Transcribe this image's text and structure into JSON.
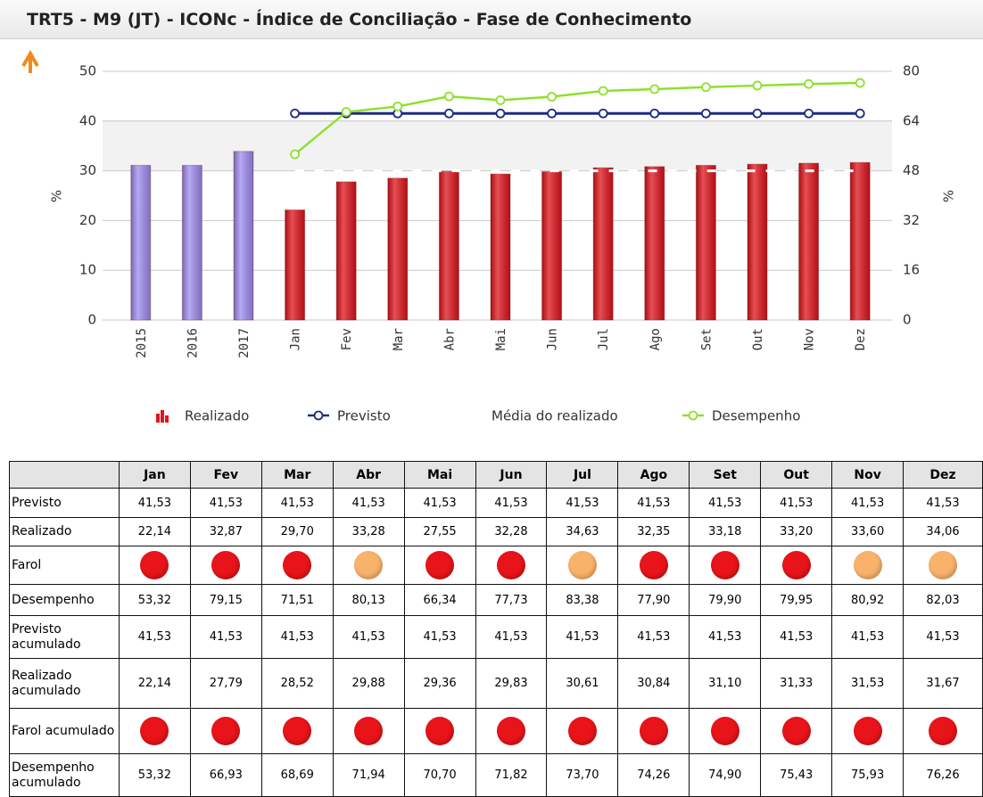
{
  "header": {
    "title": "TRT5 - M9 (JT) - ICONc - Índice de Conciliação - Fase de Conhecimento"
  },
  "chart_data": {
    "type": "bar",
    "categories": [
      "2015",
      "2016",
      "2017",
      "Jan",
      "Fev",
      "Mar",
      "Abr",
      "Mai",
      "Jun",
      "Jul",
      "Ago",
      "Set",
      "Out",
      "Nov",
      "Dez"
    ],
    "ylabel": "%",
    "y2label": "%",
    "ylim": [
      0,
      50
    ],
    "yticks": [
      0,
      10,
      20,
      30,
      40,
      50
    ],
    "y2lim": [
      0,
      80
    ],
    "y2ticks": [
      0,
      16,
      32,
      48,
      64,
      80
    ],
    "grid": true,
    "series": [
      {
        "name": "Realizado",
        "type": "bar",
        "color": "#e0141c",
        "colors": [
          "#a08cf0",
          "#a08cf0",
          "#a08cf0",
          "#e0141c",
          "#e0141c",
          "#e0141c",
          "#e0141c",
          "#e0141c",
          "#e0141c",
          "#e0141c",
          "#e0141c",
          "#e0141c",
          "#e0141c",
          "#e0141c",
          "#e0141c"
        ],
        "values": [
          31.1,
          31.1,
          33.9,
          22.14,
          27.79,
          28.52,
          29.88,
          29.36,
          29.83,
          30.61,
          30.84,
          31.1,
          31.33,
          31.53,
          31.67
        ]
      },
      {
        "name": "Previsto",
        "type": "line",
        "color": "#1f2a80",
        "values": [
          null,
          null,
          null,
          41.53,
          41.53,
          41.53,
          41.53,
          41.53,
          41.53,
          41.53,
          41.53,
          41.53,
          41.53,
          41.53,
          41.53
        ]
      },
      {
        "name": "Média do realizado",
        "type": "line",
        "color": "#ffffff",
        "dashed": true,
        "values": [
          null,
          null,
          null,
          30,
          30,
          30,
          30,
          30,
          30,
          30,
          30,
          30,
          30,
          30,
          30
        ]
      },
      {
        "name": "Desempenho",
        "type": "line",
        "axis": "y2",
        "color": "#8ee02c",
        "values": [
          null,
          null,
          null,
          53.32,
          66.93,
          68.69,
          71.94,
          70.7,
          71.82,
          73.7,
          74.26,
          74.9,
          75.43,
          75.93,
          76.26
        ]
      }
    ]
  },
  "table": {
    "columns": [
      "Jan",
      "Fev",
      "Mar",
      "Abr",
      "Mai",
      "Jun",
      "Jul",
      "Ago",
      "Set",
      "Out",
      "Nov",
      "Dez"
    ],
    "rows": [
      {
        "label": "Previsto",
        "cells": [
          "41,53",
          "41,53",
          "41,53",
          "41,53",
          "41,53",
          "41,53",
          "41,53",
          "41,53",
          "41,53",
          "41,53",
          "41,53",
          "41,53"
        ]
      },
      {
        "label": "Realizado",
        "cells": [
          "22,14",
          "32,87",
          "29,70",
          "33,28",
          "27,55",
          "32,28",
          "34,63",
          "32,35",
          "33,18",
          "33,20",
          "33,60",
          "34,06"
        ]
      },
      {
        "label": "Farol",
        "colors": [
          "#e8141a",
          "#e8141a",
          "#e8141a",
          "#f9b26a",
          "#e8141a",
          "#e8141a",
          "#f9b26a",
          "#e8141a",
          "#e8141a",
          "#e8141a",
          "#f9b26a",
          "#f9b26a"
        ]
      },
      {
        "label": "Desempenho",
        "cells": [
          "53,32",
          "79,15",
          "71,51",
          "80,13",
          "66,34",
          "77,73",
          "83,38",
          "77,90",
          "79,90",
          "79,95",
          "80,92",
          "82,03"
        ]
      },
      {
        "label": "Previsto acumulado",
        "cells": [
          "41,53",
          "41,53",
          "41,53",
          "41,53",
          "41,53",
          "41,53",
          "41,53",
          "41,53",
          "41,53",
          "41,53",
          "41,53",
          "41,53"
        ]
      },
      {
        "label": "Realizado acumulado",
        "cells": [
          "22,14",
          "27,79",
          "28,52",
          "29,88",
          "29,36",
          "29,83",
          "30,61",
          "30,84",
          "31,10",
          "31,33",
          "31,53",
          "31,67"
        ]
      },
      {
        "label": "Farol acumulado",
        "colors": [
          "#e8141a",
          "#e8141a",
          "#e8141a",
          "#e8141a",
          "#e8141a",
          "#e8141a",
          "#e8141a",
          "#e8141a",
          "#e8141a",
          "#e8141a",
          "#e8141a",
          "#e8141a"
        ]
      },
      {
        "label": "Desempenho acumulado",
        "cells": [
          "53,32",
          "66,93",
          "68,69",
          "71,94",
          "70,70",
          "71,82",
          "73,70",
          "74,26",
          "74,90",
          "75,43",
          "75,93",
          "76,26"
        ]
      }
    ]
  }
}
